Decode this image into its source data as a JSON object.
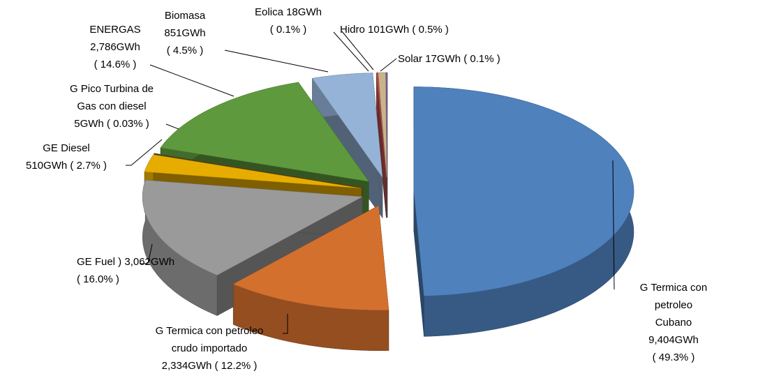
{
  "chart_data": {
    "type": "pie3d",
    "categories": [
      "G Termica con petroleo\nCubano",
      "G Termica con petroleo\ncrudo importado",
      "GE Fuel  )",
      "GE Diesel",
      "G Pico Turbina de\nGas con diesel",
      "ENERGAS",
      "Biomasa",
      "Eolica",
      "Hidro",
      "Solar"
    ],
    "values": [
      9404,
      2334,
      3062,
      510,
      5,
      2786,
      851,
      18,
      101,
      17
    ],
    "value_labels": [
      "9,404GWh",
      "2,334GWh",
      "3,062GWh",
      "510GWh",
      "5GWh",
      "2,786GWh",
      "851GWh",
      "18GWh",
      "101GWh",
      "17GWh"
    ],
    "percent_labels": [
      "( 49.3% )",
      "( 12.2% )",
      "( 16.0% )",
      "( 2.7% )",
      "( 0.03% )",
      "( 14.6% )",
      "( 4.5% )",
      "( 0.1% )",
      "( 0.5% )",
      "( 0.1% )"
    ],
    "colors": [
      "#4f81bd",
      "#d4702e",
      "#9a9a9a",
      "#e6ad00",
      "#6b6b2a",
      "#5e9a3d",
      "#95b3d7",
      "#c0504d",
      "#c9b38a",
      "#8064a2"
    ]
  }
}
